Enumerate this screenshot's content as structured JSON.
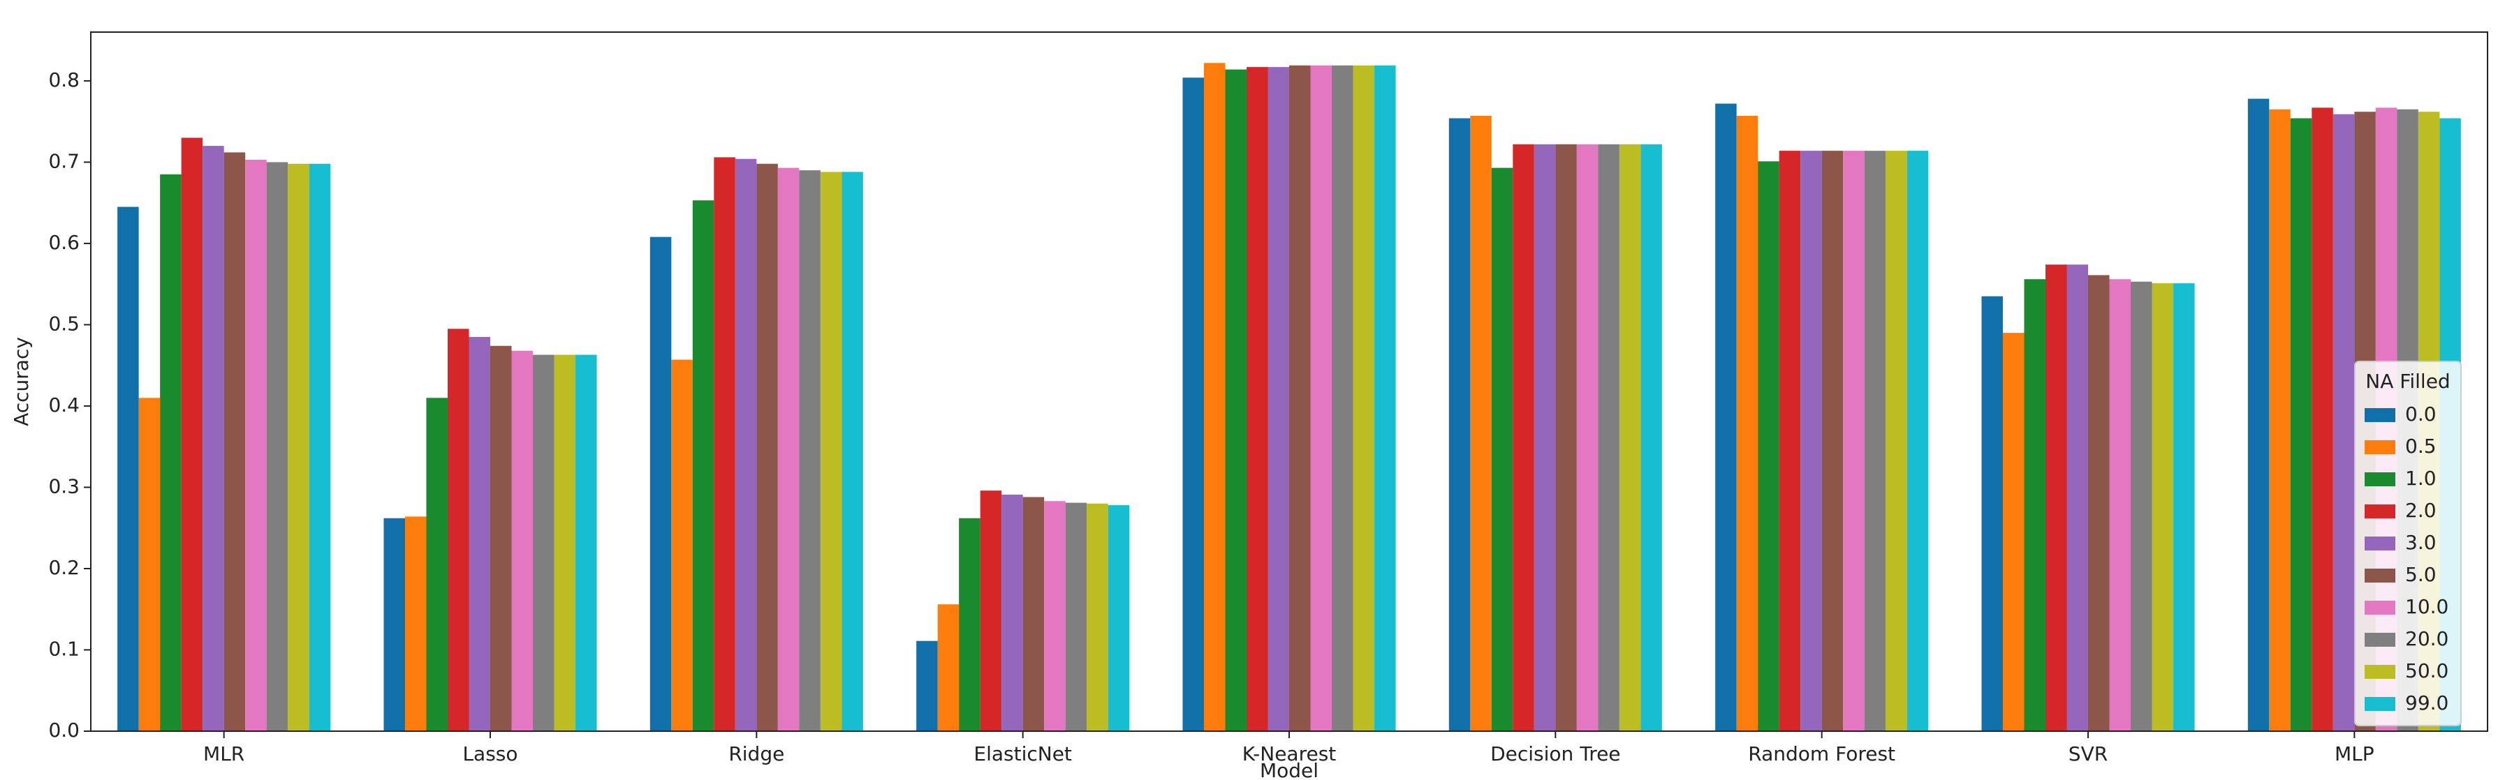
{
  "chart_data": {
    "type": "bar",
    "x_label": "Model",
    "y_label": "Accuracy",
    "categories": [
      "MLR",
      "Lasso",
      "Ridge",
      "ElasticNet",
      "K-Nearest",
      "Decision Tree",
      "Random Forest",
      "SVR",
      "MLP"
    ],
    "legend_title": "NA Filled",
    "legend_position": "lower right",
    "ylim": [
      0,
      0.86
    ],
    "yticks": [
      {
        "value": 0,
        "label": "0.0"
      },
      0.1,
      0.2,
      0.3,
      0.4,
      0.5,
      0.6,
      0.7,
      0.8
    ],
    "series": [
      {
        "name": "0.0",
        "color": "#1170aa",
        "values": [
          0.645,
          0.262,
          0.608,
          0.111,
          0.804,
          0.754,
          0.772,
          0.535,
          0.778
        ]
      },
      {
        "name": "0.5",
        "color": "#fc7d0b",
        "values": [
          0.41,
          0.264,
          0.457,
          0.156,
          0.822,
          0.757,
          0.757,
          0.49,
          0.765
        ]
      },
      {
        "name": "1.0",
        "color": "#1a8a2e",
        "values": [
          0.685,
          0.41,
          0.653,
          0.262,
          0.814,
          0.693,
          0.701,
          0.556,
          0.754
        ]
      },
      {
        "name": "2.0",
        "color": "#d62728",
        "values": [
          0.73,
          0.495,
          0.706,
          0.296,
          0.817,
          0.722,
          0.714,
          0.574,
          0.767
        ]
      },
      {
        "name": "3.0",
        "color": "#9467bd",
        "values": [
          0.72,
          0.485,
          0.704,
          0.291,
          0.817,
          0.722,
          0.714,
          0.574,
          0.759
        ]
      },
      {
        "name": "5.0",
        "color": "#8c564b",
        "values": [
          0.712,
          0.474,
          0.698,
          0.288,
          0.819,
          0.722,
          0.714,
          0.561,
          0.762
        ]
      },
      {
        "name": "10.0",
        "color": "#e377c2",
        "values": [
          0.703,
          0.468,
          0.693,
          0.283,
          0.819,
          0.722,
          0.714,
          0.556,
          0.767
        ]
      },
      {
        "name": "20.0",
        "color": "#7f7f7f",
        "values": [
          0.7,
          0.463,
          0.69,
          0.281,
          0.819,
          0.722,
          0.714,
          0.553,
          0.765
        ]
      },
      {
        "name": "50.0",
        "color": "#bcbd22",
        "values": [
          0.698,
          0.463,
          0.688,
          0.28,
          0.819,
          0.722,
          0.714,
          0.551,
          0.762
        ]
      },
      {
        "name": "99.0",
        "color": "#17becf",
        "values": [
          0.698,
          0.463,
          0.688,
          0.278,
          0.819,
          0.722,
          0.714,
          0.551,
          0.754
        ]
      }
    ]
  }
}
